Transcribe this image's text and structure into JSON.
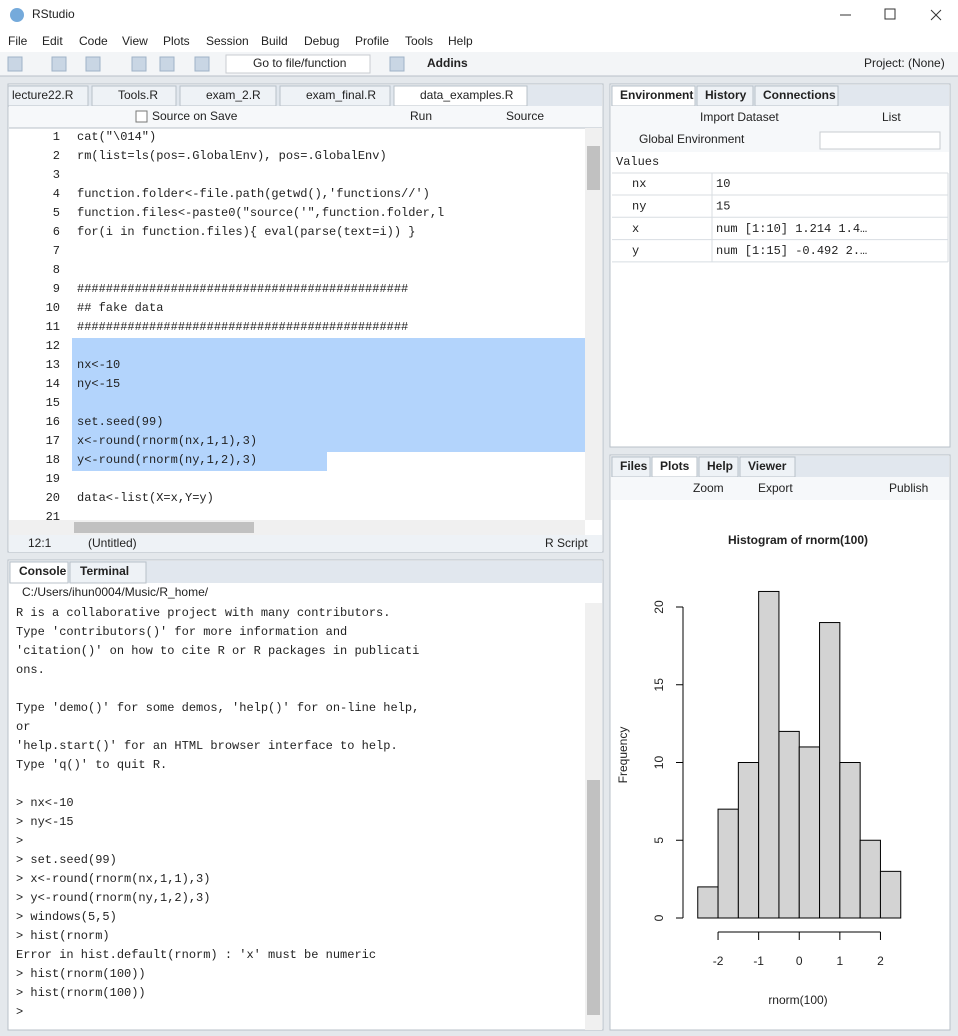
{
  "window": {
    "title": "RStudio"
  },
  "menu": [
    "File",
    "Edit",
    "Code",
    "View",
    "Plots",
    "Session",
    "Build",
    "Debug",
    "Profile",
    "Tools",
    "Help"
  ],
  "toolbar": {
    "go_to_file": "Go to file/function",
    "addins": "Addins",
    "project": "Project: (None)"
  },
  "editor": {
    "tabs": [
      "lecture22.R",
      "Tools.R",
      "exam_2.R",
      "exam_final.R",
      "data_examples.R"
    ],
    "source_on_save": "Source on Save",
    "run": "Run",
    "source": "Source",
    "lines": [
      {
        "n": 1,
        "text": "cat(\"\\014\")"
      },
      {
        "n": 2,
        "text": "rm(list=ls(pos=.GlobalEnv), pos=.GlobalEnv)"
      },
      {
        "n": 3
      },
      {
        "n": 4,
        "text": "function.folder<-file.path(getwd(),'functions//')"
      },
      {
        "n": 5,
        "text": "function.files<-paste0(\"source('\",function.folder,l"
      },
      {
        "n": 6,
        "text": "for(i in function.files){ eval(parse(text=i)) }"
      },
      {
        "n": 7
      },
      {
        "n": 8
      },
      {
        "n": 9,
        "text": "##############################################"
      },
      {
        "n": 10,
        "text": "##  fake data"
      },
      {
        "n": 11,
        "text": "##############################################"
      },
      {
        "n": 12
      },
      {
        "n": 13,
        "text": "nx<-10"
      },
      {
        "n": 14,
        "text": "ny<-15"
      },
      {
        "n": 15
      },
      {
        "n": 16,
        "text": "set.seed(99)"
      },
      {
        "n": 17,
        "text": "x<-round(rnorm(nx,1,1),3)"
      },
      {
        "n": 18,
        "text": "y<-round(rnorm(ny,1,2),3)"
      },
      {
        "n": 19
      },
      {
        "n": 20,
        "text": "data<-list(X=x,Y=y)"
      },
      {
        "n": 21
      }
    ],
    "position": "12:1",
    "scope": "(Untitled)",
    "filetype": "R Script"
  },
  "environment": {
    "tabs": [
      "Environment",
      "History",
      "Connections"
    ],
    "import": "Import Dataset",
    "view": "List",
    "scope": "Global Environment",
    "section": "Values",
    "rows": [
      [
        "nx",
        "10"
      ],
      [
        "ny",
        "15"
      ],
      [
        "x",
        "num [1:10] 1.214 1.4…"
      ],
      [
        "y",
        "num [1:15] -0.492 2.…"
      ]
    ]
  },
  "console": {
    "tabs": [
      "Console",
      "Terminal"
    ],
    "path": "C:/Users/ihun0004/Music/R_home/",
    "lines": [
      {
        "kind": "output",
        "text": "R is a collaborative project with many contributors."
      },
      {
        "kind": "output",
        "text": "Type 'contributors()' for more information and"
      },
      {
        "kind": "output",
        "text": "'citation()' on how to cite R or R packages in publicati"
      },
      {
        "kind": "output",
        "text": "ons."
      },
      {
        "kind": "output"
      },
      {
        "kind": "output",
        "text": "Type 'demo()' for some demos, 'help()' for on-line help,"
      },
      {
        "kind": "output",
        "text": " or"
      },
      {
        "kind": "output",
        "text": "'help.start()' for an HTML browser interface to help."
      },
      {
        "kind": "output",
        "text": "Type 'q()' to quit R."
      },
      {
        "kind": "output"
      },
      {
        "kind": "input",
        "text": "> nx<-10"
      },
      {
        "kind": "input",
        "text": "> ny<-15"
      },
      {
        "kind": "input",
        "text": ">"
      },
      {
        "kind": "input",
        "text": "> set.seed(99)"
      },
      {
        "kind": "input",
        "text": "> x<-round(rnorm(nx,1,1),3)"
      },
      {
        "kind": "input",
        "text": "> y<-round(rnorm(ny,1,2),3)"
      },
      {
        "kind": "input",
        "text": "> windows(5,5)"
      },
      {
        "kind": "input",
        "text": "> hist(rnorm)"
      },
      {
        "kind": "error",
        "text": "Error in hist.default(rnorm) : 'x' must be numeric"
      },
      {
        "kind": "input",
        "text": "> hist(rnorm(100))"
      },
      {
        "kind": "input",
        "text": "> hist(rnorm(100))"
      },
      {
        "kind": "input",
        "text": ">"
      }
    ]
  },
  "plots_pane": {
    "tabs": [
      "Files",
      "Plots",
      "Help",
      "Viewer"
    ],
    "zoom": "Zoom",
    "export": "Export",
    "publish": "Publish"
  },
  "chart_data": {
    "type": "histogram",
    "title": "Histogram of rnorm(100)",
    "x_label": "rnorm(100)",
    "y_label": "Frequency",
    "bins": [
      -2.5,
      -2,
      -1.5,
      -1,
      -0.5,
      0,
      0.5,
      1,
      1.5,
      2,
      2.5
    ],
    "values": [
      2,
      7,
      10,
      21,
      12,
      11,
      19,
      10,
      5,
      3
    ],
    "color": "#d3d3d3",
    "xlim": [
      -2.5,
      2.5
    ],
    "xticks": [
      -2,
      -1,
      0,
      1,
      2
    ],
    "ylim": [
      0,
      21
    ],
    "yticks": [
      0,
      5,
      10,
      15,
      20
    ]
  }
}
